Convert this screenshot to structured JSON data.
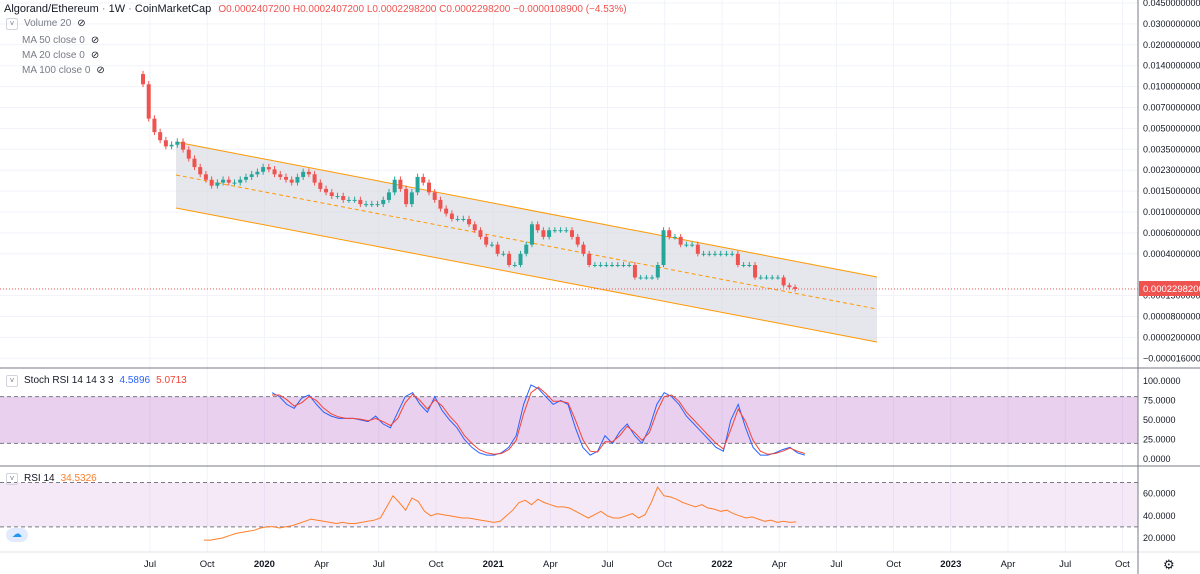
{
  "header": {
    "symbol": "Algorand/Ethereum",
    "interval": "1W",
    "source": "CoinMarketCap",
    "open": "O0.0002407200",
    "high": "H0.0002407200",
    "low": "L0.0002298200",
    "close": "C0.0002298200",
    "change": "−0.0000108900 (−4.53%)"
  },
  "legend": {
    "volume": "Volume 20",
    "ma50": "MA 50 close 0",
    "ma20": "MA 20 close 0",
    "ma100": "MA 100 close 0"
  },
  "colors": {
    "up": "#26a69a",
    "down": "#ef5350",
    "channel": "#ff9800",
    "stoch_k": "#2962ff",
    "stoch_d": "#f44336",
    "rsi": "#ff7f2a",
    "price_label": "#ef5350"
  },
  "chart_data": [
    {
      "type": "candlestick",
      "title": "Algorand/Ethereum · 1W · CoinMarketCap",
      "y_scale": "log",
      "last_price_label": "0.0002298200",
      "y_ticks": [
        "0.0450000000",
        "0.0300000000",
        "0.0200000000",
        "0.0140000000",
        "0.0100000000",
        "0.0070000000",
        "0.0050000000",
        "0.0035000000",
        "0.0023000000",
        "0.0015000000",
        "0.0010000000",
        "0.0006000000",
        "0.0004000000",
        "0.0002298200",
        "0.0001500000",
        "0.0000800000",
        "0.0000200000",
        "−0.0000160000"
      ],
      "x_ticks": [
        "Jul",
        "Oct",
        "2020",
        "Apr",
        "Jul",
        "Oct",
        "2021",
        "Apr",
        "Jul",
        "Oct",
        "2022",
        "Apr",
        "Jul",
        "Oct",
        "2023",
        "Apr",
        "Jul",
        "Oct"
      ],
      "close_series": [
        0.0105,
        0.0058,
        0.0046,
        0.004,
        0.0036,
        0.0037,
        0.0039,
        0.0034,
        0.0029,
        0.0025,
        0.0022,
        0.002,
        0.0018,
        0.0019,
        0.002,
        0.0019,
        0.0019,
        0.002,
        0.0021,
        0.0022,
        0.0023,
        0.0025,
        0.0024,
        0.0022,
        0.0021,
        0.002,
        0.0019,
        0.0021,
        0.0023,
        0.0022,
        0.0019,
        0.0017,
        0.0016,
        0.0015,
        0.0015,
        0.0014,
        0.0014,
        0.0014,
        0.0013,
        0.0013,
        0.0013,
        0.0013,
        0.0014,
        0.0016,
        0.002,
        0.0017,
        0.0013,
        0.0016,
        0.0021,
        0.0019,
        0.0016,
        0.0014,
        0.0012,
        0.0011,
        0.001,
        0.001,
        0.001,
        0.0009,
        0.0008,
        0.0007,
        0.0006,
        0.0006,
        0.0005,
        0.0005,
        0.0004,
        0.0004,
        0.0005,
        0.0006,
        0.0009,
        0.0008,
        0.0007,
        0.0008,
        0.0008,
        0.0008,
        0.0008,
        0.0007,
        0.0006,
        0.0005,
        0.0004,
        0.0004,
        0.0004,
        0.0004,
        0.0004,
        0.0004,
        0.0004,
        0.0004,
        0.0003,
        0.0003,
        0.0003,
        0.0003,
        0.0004,
        0.0008,
        0.0007,
        0.0007,
        0.0006,
        0.0006,
        0.0006,
        0.0005,
        0.0005,
        0.0005,
        0.0005,
        0.0005,
        0.0005,
        0.0005,
        0.0004,
        0.0004,
        0.0004,
        0.0003,
        0.0003,
        0.0003,
        0.0003,
        0.0003,
        0.00025,
        0.00024,
        0.00023
      ]
    },
    {
      "type": "line",
      "title": "Stoch RSI 14 14 3 3",
      "y_ticks": [
        "100.0000",
        "75.0000",
        "50.0000",
        "25.0000",
        "0.0000"
      ],
      "ylim": [
        0,
        100
      ],
      "series": [
        {
          "name": "4.5896",
          "values": [
            85,
            80,
            70,
            65,
            78,
            82,
            70,
            60,
            55,
            52,
            52,
            52,
            50,
            48,
            55,
            45,
            40,
            60,
            80,
            85,
            70,
            60,
            80,
            62,
            50,
            40,
            25,
            15,
            8,
            5,
            5,
            8,
            15,
            30,
            70,
            95,
            90,
            80,
            70,
            75,
            70,
            40,
            15,
            5,
            10,
            30,
            20,
            35,
            45,
            30,
            20,
            40,
            70,
            85,
            80,
            70,
            55,
            45,
            35,
            25,
            15,
            10,
            50,
            70,
            40,
            15,
            5,
            5,
            8,
            12,
            15,
            8,
            5
          ]
        },
        {
          "name": "5.0713",
          "values": [
            82,
            82,
            76,
            68,
            72,
            80,
            75,
            65,
            58,
            54,
            52,
            52,
            51,
            49,
            52,
            48,
            43,
            52,
            72,
            83,
            75,
            64,
            76,
            68,
            55,
            45,
            30,
            20,
            12,
            8,
            6,
            7,
            12,
            24,
            58,
            85,
            92,
            84,
            74,
            74,
            72,
            50,
            25,
            10,
            9,
            22,
            22,
            30,
            42,
            34,
            24,
            34,
            60,
            80,
            82,
            74,
            60,
            50,
            40,
            30,
            20,
            13,
            38,
            64,
            48,
            24,
            10,
            6,
            7,
            10,
            14,
            10,
            7
          ]
        }
      ]
    },
    {
      "type": "line",
      "title": "RSI 14",
      "y_ticks": [
        "60.0000",
        "40.0000",
        "20.0000"
      ],
      "ylim": [
        10,
        75
      ],
      "series": [
        {
          "name": "34.5326",
          "values": [
            18,
            18,
            19,
            20,
            22,
            24,
            25,
            26,
            27,
            29,
            30,
            30,
            29,
            30,
            31,
            33,
            35,
            37,
            36,
            35,
            34,
            33,
            34,
            33,
            33,
            34,
            35,
            36,
            38,
            48,
            58,
            52,
            45,
            56,
            53,
            44,
            40,
            42,
            41,
            40,
            39,
            38,
            38,
            37,
            36,
            35,
            34,
            35,
            40,
            45,
            52,
            54,
            50,
            55,
            52,
            50,
            48,
            48,
            47,
            44,
            41,
            38,
            41,
            44,
            40,
            38,
            38,
            40,
            42,
            38,
            41,
            52,
            66,
            58,
            57,
            55,
            52,
            50,
            48,
            50,
            47,
            46,
            44,
            45,
            42,
            40,
            38,
            39,
            37,
            35,
            36,
            34,
            35,
            34,
            34.5
          ]
        }
      ]
    }
  ]
}
